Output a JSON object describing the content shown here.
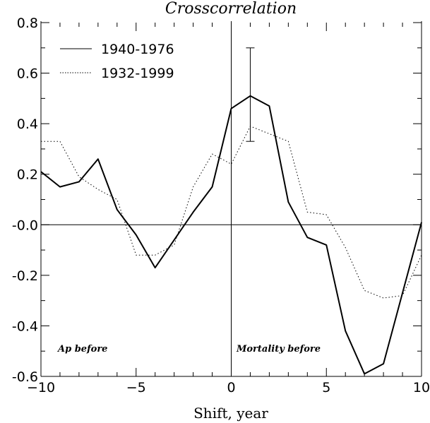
{
  "chart_data": {
    "type": "line",
    "title": "Crosscorrelation",
    "xlabel": "Shift, year",
    "ylabel": "",
    "xlim": [
      -10,
      10
    ],
    "ylim": [
      -0.6,
      0.8
    ],
    "x_ticks": [
      "-10",
      "-5",
      "0",
      "5",
      "10"
    ],
    "y_ticks": [
      "-0.6",
      "-0.4",
      "-0.2",
      "-0.0",
      "0.2",
      "0.4",
      "0.6",
      "0.8"
    ],
    "grid": false,
    "legend_position": "top-left",
    "x": [
      -10,
      -9,
      -8,
      -7,
      -6,
      -5,
      -4,
      -3,
      -2,
      -1,
      0,
      1,
      2,
      3,
      4,
      5,
      6,
      7,
      8,
      9,
      10
    ],
    "series": [
      {
        "name": "1940-1976",
        "style": "solid",
        "values": [
          0.21,
          0.15,
          0.17,
          0.26,
          0.06,
          -0.04,
          -0.17,
          -0.06,
          0.05,
          0.15,
          0.46,
          0.51,
          0.47,
          0.09,
          -0.05,
          -0.08,
          -0.42,
          -0.59,
          -0.55,
          -0.27,
          0.01
        ]
      },
      {
        "name": "1932-1999",
        "style": "dotted",
        "values": [
          0.33,
          0.33,
          0.19,
          0.14,
          0.1,
          -0.12,
          -0.12,
          -0.08,
          0.15,
          0.28,
          0.24,
          0.39,
          0.36,
          0.33,
          0.05,
          0.04,
          -0.09,
          -0.26,
          -0.29,
          -0.28,
          -0.12
        ]
      }
    ],
    "error_bar": {
      "x": 1,
      "low": 0.33,
      "high": 0.7
    },
    "reference_lines": {
      "x": 0,
      "y": 0
    },
    "annotations": [
      "Ap before",
      "Mortality before"
    ],
    "color": "#000000"
  }
}
